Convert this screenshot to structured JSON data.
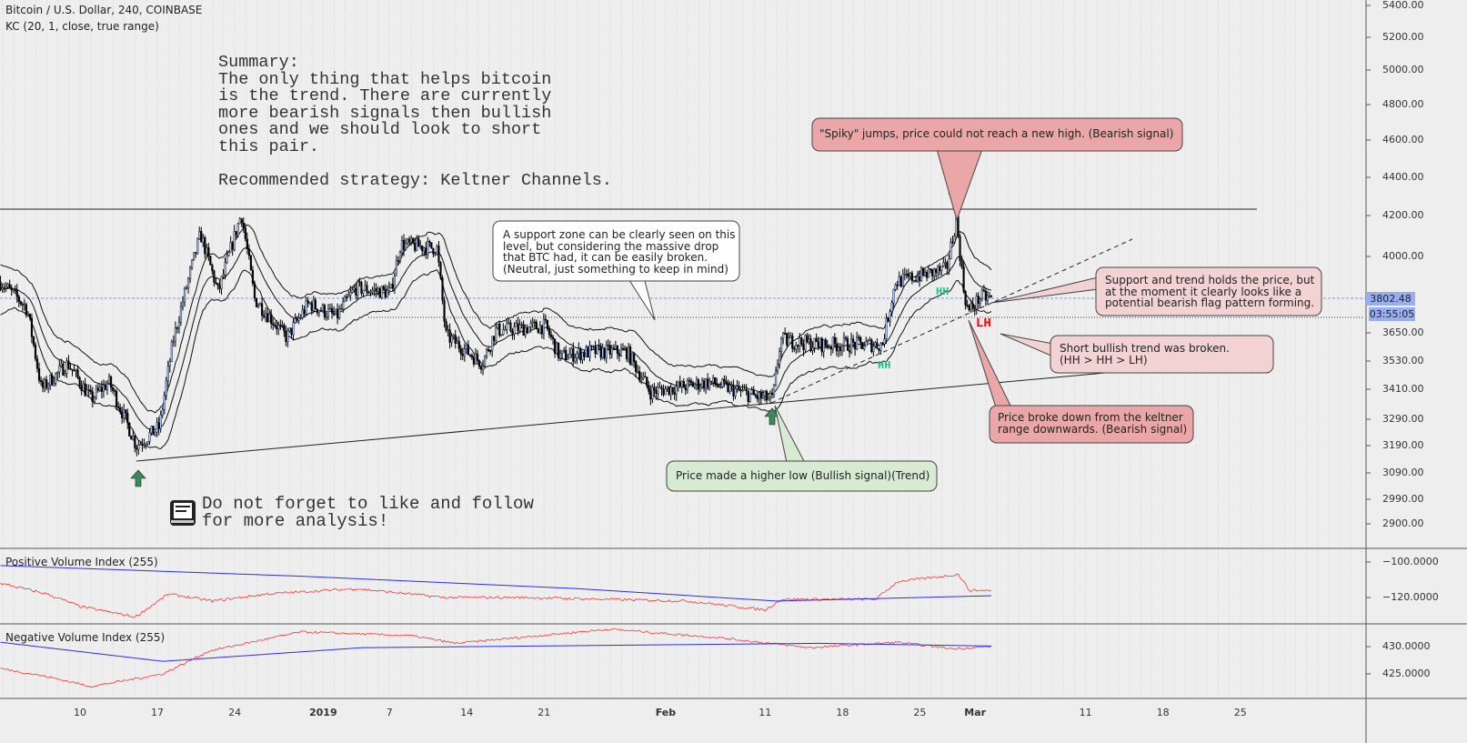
{
  "header": {
    "symbol_line": "Bitcoin / U.S. Dollar, 240, COINBASE",
    "indicator_line": "KC (20, 1, close, true range)"
  },
  "summary": {
    "text": "Summary:\nThe only thing that helps bitcoin\nis the trend. There are currently\nmore bearish signals then bullish\nones and we should look to short\nthis pair.\n\nRecommended strategy: Keltner Channels."
  },
  "annotations": {
    "spiky": "\"Spiky\" jumps, price could not reach a new high. (Bearish signal)",
    "support_zone": "A support zone can be clearly seen on this\nlevel, but considering the massive drop\nthat BTC had, it can be easily broken.\n(Neutral, just something to keep in mind)",
    "support_trend": "Support and trend holds the price, but\nat the moment it clearly looks like a\npotential bearish flag pattern forming.",
    "short_bullish": "Short bullish trend was broken.\n(HH > HH > LH)",
    "price_broke": "Price broke down from the keltner\nrange downwards. (Bearish signal)",
    "higher_low": "Price made a higher low (Bullish signal)(Trend)",
    "follow": "Do not forget to like and follow\nfor more analysis!",
    "hh1": "HH",
    "hh2": "HH",
    "lh": "LH"
  },
  "colors": {
    "up": "#a9c4f5",
    "down": "#000000",
    "red_bubble": "#eba7a7",
    "pink_bubble": "#f2d2d3",
    "green_bubble": "#d6ebd1",
    "pvi": "#ff3030",
    "ma": "#2a2aff",
    "hh": "#1fbf8a",
    "lh": "#ff0000",
    "price_tag": "#97aff0"
  },
  "price_axis": {
    "ticks": [
      "5400.00",
      "5200.00",
      "5000.00",
      "4800.00",
      "4600.00",
      "4400.00",
      "4200.00",
      "4000.00",
      "3650.00",
      "3530.00",
      "3410.00",
      "3290.00",
      "3190.00",
      "3090.00",
      "2990.00",
      "2900.00"
    ],
    "last_price": "3802.48",
    "countdown": "03:55:05"
  },
  "pvi_axis": {
    "ticks": [
      "−100.0000",
      "−120.0000"
    ]
  },
  "nvi_axis": {
    "ticks": [
      "430.0000",
      "425.0000"
    ]
  },
  "x_axis": {
    "labels": [
      "10",
      "17",
      "24",
      "2019",
      "7",
      "14",
      "21",
      "Feb",
      "11",
      "18",
      "25",
      "Mar",
      "11",
      "18",
      "25"
    ]
  },
  "chart_data": [
    {
      "type": "candlestick",
      "title": "Bitcoin / U.S. Dollar, 240, COINBASE",
      "x_unit": "days from Dec 10 2018",
      "ylim": [
        2900,
        5400
      ],
      "close_keypoints": [
        [
          -7.2,
          3880
        ],
        [
          -4.8,
          3760
        ],
        [
          -3.5,
          3410
        ],
        [
          -1.1,
          3520
        ],
        [
          1,
          3370
        ],
        [
          2.6,
          3440
        ],
        [
          5.1,
          3190
        ],
        [
          7.2,
          3260
        ],
        [
          8.4,
          3610
        ],
        [
          10.9,
          4110
        ],
        [
          12.5,
          3830
        ],
        [
          14.6,
          4210
        ],
        [
          15.8,
          3800
        ],
        [
          18.7,
          3630
        ],
        [
          20.7,
          3780
        ],
        [
          23.2,
          3720
        ],
        [
          24.9,
          3850
        ],
        [
          28.1,
          3830
        ],
        [
          29,
          4060
        ],
        [
          32.3,
          4040
        ],
        [
          33.1,
          3640
        ],
        [
          36.4,
          3520
        ],
        [
          37.6,
          3660
        ],
        [
          42.1,
          3680
        ],
        [
          43.4,
          3550
        ],
        [
          46.3,
          3570
        ],
        [
          49.5,
          3570
        ],
        [
          51.6,
          3400
        ],
        [
          56.9,
          3440
        ],
        [
          61.1,
          3380
        ],
        [
          62.7,
          3370
        ],
        [
          63.4,
          3620
        ],
        [
          66.8,
          3600
        ],
        [
          72.6,
          3600
        ],
        [
          73.8,
          3880
        ],
        [
          78.4,
          3940
        ],
        [
          79.3,
          4180
        ],
        [
          80,
          3830
        ],
        [
          80.4,
          3740
        ],
        [
          81.5,
          3810
        ],
        [
          82.5,
          3802
        ]
      ],
      "keltner": {
        "length": 20,
        "multiplier": 1,
        "source": "close",
        "use_true_range": true
      }
    },
    {
      "type": "line",
      "title": "Positive Volume Index (255)",
      "ylim": [
        -140,
        -92
      ],
      "series": [
        {
          "name": "PVI",
          "points": [
            [
              -7.2,
              -112
            ],
            [
              -3,
              -118
            ],
            [
              0,
              -125
            ],
            [
              5,
              -131
            ],
            [
              8,
              -118
            ],
            [
              12,
              -122
            ],
            [
              17,
              -118
            ],
            [
              25,
              -115
            ],
            [
              33,
              -120
            ],
            [
              40,
              -120
            ],
            [
              55,
              -122
            ],
            [
              62,
              -127
            ],
            [
              63.5,
              -121
            ],
            [
              72,
              -121
            ],
            [
              74,
              -111
            ],
            [
              79.5,
              -107
            ],
            [
              80.5,
              -116
            ],
            [
              82.5,
              -116
            ]
          ]
        },
        {
          "name": "MA",
          "points": [
            [
              -7.2,
              -102
            ],
            [
              20,
              -108
            ],
            [
              45,
              -115
            ],
            [
              63,
              -122
            ],
            [
              82.5,
              -119
            ]
          ]
        }
      ]
    },
    {
      "type": "line",
      "title": "Negative Volume Index (255)",
      "ylim": [
        420,
        433
      ],
      "series": [
        {
          "name": "NVI",
          "points": [
            [
              -7.2,
              426
            ],
            [
              -3,
              424.5
            ],
            [
              1,
              422.7
            ],
            [
              7.5,
              425
            ],
            [
              11.7,
              429.2
            ],
            [
              20,
              432.7
            ],
            [
              30,
              432
            ],
            [
              34,
              430.6
            ],
            [
              48,
              433.2
            ],
            [
              58,
              431.6
            ],
            [
              66,
              429.8
            ],
            [
              74,
              430.8
            ],
            [
              79,
              429.6
            ],
            [
              82.5,
              430
            ]
          ]
        },
        {
          "name": "MA",
          "points": [
            [
              -7.2,
              430.8
            ],
            [
              7.5,
              427.3
            ],
            [
              25.5,
              429.8
            ],
            [
              66.8,
              430.6
            ],
            [
              82.5,
              430.1
            ]
          ]
        }
      ]
    }
  ]
}
